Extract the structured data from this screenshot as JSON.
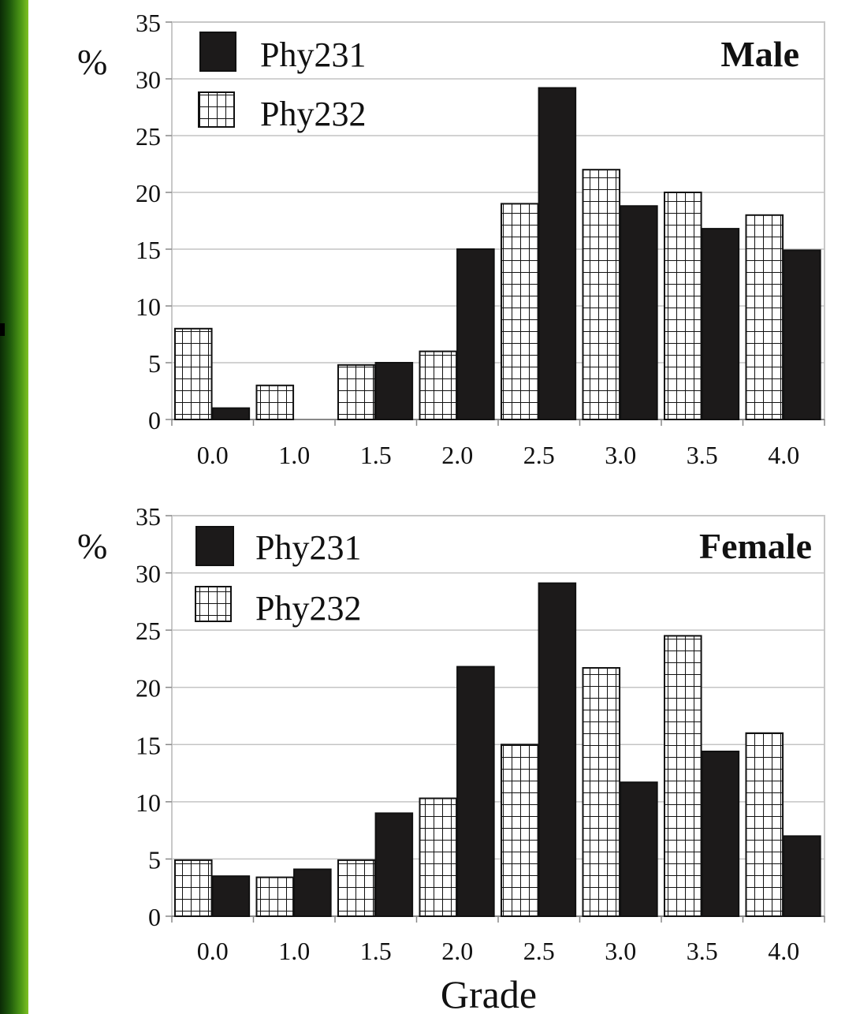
{
  "chart_data": [
    {
      "type": "bar",
      "panel_label": "Male",
      "ylabel": "%",
      "xlabel": "",
      "ylim": [
        0,
        35
      ],
      "yticks": [
        0,
        5,
        10,
        15,
        20,
        25,
        30,
        35
      ],
      "categories": [
        "0.0",
        "1.0",
        "1.5",
        "2.0",
        "2.5",
        "3.0",
        "3.5",
        "4.0"
      ],
      "series": [
        {
          "name": "Phy232",
          "pattern": "grid-hatch",
          "values": [
            8,
            3,
            4.8,
            6,
            19,
            22,
            20,
            18
          ]
        },
        {
          "name": "Phy231",
          "pattern": "solid",
          "color": "#1c1a1a",
          "values": [
            1,
            0,
            5,
            15,
            29.2,
            18.8,
            16.8,
            14.9
          ]
        }
      ],
      "legend": "top-left",
      "grid": true
    },
    {
      "type": "bar",
      "panel_label": "Female",
      "ylabel": "%",
      "xlabel": "Grade",
      "ylim": [
        0,
        35
      ],
      "yticks": [
        0,
        5,
        10,
        15,
        20,
        25,
        30,
        35
      ],
      "categories": [
        "0.0",
        "1.0",
        "1.5",
        "2.0",
        "2.5",
        "3.0",
        "3.5",
        "4.0"
      ],
      "series": [
        {
          "name": "Phy232",
          "pattern": "grid-hatch",
          "values": [
            4.9,
            3.4,
            4.9,
            10.3,
            15,
            21.7,
            24.5,
            16
          ]
        },
        {
          "name": "Phy231",
          "pattern": "solid",
          "color": "#1c1a1a",
          "values": [
            3.5,
            4.1,
            9,
            21.8,
            29.1,
            11.7,
            14.4,
            7
          ]
        }
      ],
      "legend": "top-left",
      "grid": true
    }
  ]
}
